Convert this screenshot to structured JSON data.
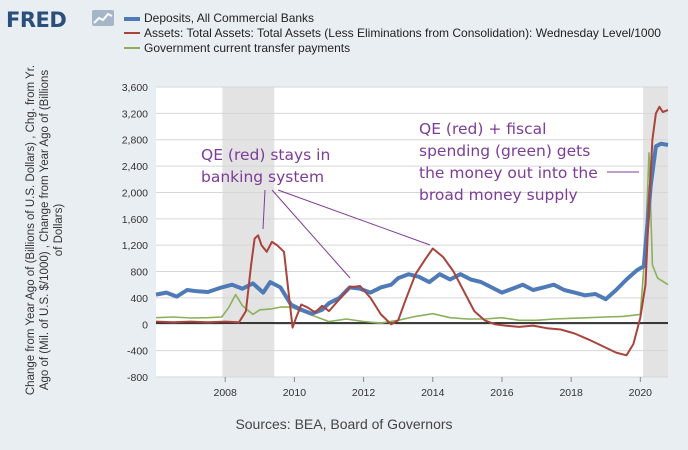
{
  "logo_text": "FRED",
  "source": "Sources: BEA, Board of Governors",
  "ylabel_lines": [
    "Change from Year Ago of (Billions of U.S. Dollars) , Chg. from Yr.",
    "Ago of (Mil. of U.S. $/1000) , Change from Year Ago of (Billions",
    "of Dollars)"
  ],
  "legend": [
    {
      "name": "Deposits, All Commercial Banks",
      "color": "#4f7ab8"
    },
    {
      "name": "Assets: Total Assets: Total Assets (Less Eliminations from Consolidation): Wednesday Level/1000",
      "color": "#a8443b"
    },
    {
      "name": "Government current transfer payments",
      "color": "#8cb05b"
    }
  ],
  "annotations": [
    {
      "lines": [
        "QE (red) stays in",
        "banking system"
      ]
    },
    {
      "lines": [
        "QE (red) + fiscal",
        "spending (green) gets",
        "the money out into the",
        "broad money supply"
      ]
    }
  ],
  "chart_data": {
    "type": "line",
    "xlim": [
      2006.0,
      2020.8
    ],
    "ylim": [
      -800,
      3600
    ],
    "yticks": [
      -800,
      -400,
      0,
      400,
      800,
      1200,
      1600,
      2000,
      2400,
      2800,
      3200,
      3600
    ],
    "ytick_labels": [
      "-800",
      "-400",
      "0",
      "400",
      "800",
      "1,200",
      "1,600",
      "2,000",
      "2,400",
      "2,800",
      "3,200",
      "3,600"
    ],
    "xticks": [
      2008,
      2010,
      2012,
      2014,
      2016,
      2018,
      2020
    ],
    "xtick_labels": [
      "2008",
      "2010",
      "2012",
      "2014",
      "2016",
      "2018",
      "2020"
    ],
    "recessions": [
      [
        2007.92,
        2009.42
      ],
      [
        2020.08,
        2020.8
      ]
    ],
    "series": [
      {
        "name": "Deposits, All Commercial Banks",
        "color": "#4f7ab8",
        "points": [
          [
            2006.0,
            450
          ],
          [
            2006.3,
            480
          ],
          [
            2006.6,
            420
          ],
          [
            2006.9,
            520
          ],
          [
            2007.2,
            500
          ],
          [
            2007.5,
            490
          ],
          [
            2007.9,
            560
          ],
          [
            2008.2,
            600
          ],
          [
            2008.5,
            540
          ],
          [
            2008.8,
            620
          ],
          [
            2009.1,
            480
          ],
          [
            2009.3,
            640
          ],
          [
            2009.6,
            560
          ],
          [
            2009.9,
            300
          ],
          [
            2010.2,
            220
          ],
          [
            2010.5,
            160
          ],
          [
            2010.8,
            220
          ],
          [
            2011.0,
            320
          ],
          [
            2011.3,
            400
          ],
          [
            2011.6,
            560
          ],
          [
            2011.9,
            540
          ],
          [
            2012.2,
            480
          ],
          [
            2012.5,
            560
          ],
          [
            2012.8,
            600
          ],
          [
            2013.0,
            700
          ],
          [
            2013.3,
            760
          ],
          [
            2013.6,
            720
          ],
          [
            2013.9,
            640
          ],
          [
            2014.2,
            760
          ],
          [
            2014.5,
            680
          ],
          [
            2014.8,
            760
          ],
          [
            2015.1,
            680
          ],
          [
            2015.4,
            640
          ],
          [
            2015.7,
            560
          ],
          [
            2016.0,
            480
          ],
          [
            2016.3,
            540
          ],
          [
            2016.6,
            600
          ],
          [
            2016.9,
            520
          ],
          [
            2017.2,
            560
          ],
          [
            2017.5,
            600
          ],
          [
            2017.8,
            520
          ],
          [
            2018.1,
            480
          ],
          [
            2018.4,
            440
          ],
          [
            2018.7,
            460
          ],
          [
            2019.0,
            380
          ],
          [
            2019.3,
            520
          ],
          [
            2019.6,
            680
          ],
          [
            2019.9,
            820
          ],
          [
            2020.1,
            880
          ],
          [
            2020.3,
            2100
          ],
          [
            2020.45,
            2700
          ],
          [
            2020.6,
            2740
          ],
          [
            2020.8,
            2720
          ]
        ]
      },
      {
        "name": "Assets: Total Assets: Total Assets (Less Eliminations from Consolidation): Wednesday Level/1000",
        "color": "#a8443b",
        "points": [
          [
            2006.0,
            40
          ],
          [
            2006.5,
            30
          ],
          [
            2007.0,
            40
          ],
          [
            2007.5,
            30
          ],
          [
            2008.0,
            40
          ],
          [
            2008.4,
            30
          ],
          [
            2008.6,
            200
          ],
          [
            2008.75,
            900
          ],
          [
            2008.85,
            1300
          ],
          [
            2008.95,
            1350
          ],
          [
            2009.05,
            1200
          ],
          [
            2009.2,
            1100
          ],
          [
            2009.35,
            1250
          ],
          [
            2009.5,
            1200
          ],
          [
            2009.7,
            1100
          ],
          [
            2009.85,
            400
          ],
          [
            2009.95,
            -50
          ],
          [
            2010.05,
            100
          ],
          [
            2010.2,
            300
          ],
          [
            2010.4,
            250
          ],
          [
            2010.6,
            180
          ],
          [
            2010.8,
            280
          ],
          [
            2011.0,
            200
          ],
          [
            2011.3,
            380
          ],
          [
            2011.6,
            560
          ],
          [
            2011.9,
            580
          ],
          [
            2012.2,
            400
          ],
          [
            2012.5,
            150
          ],
          [
            2012.8,
            0
          ],
          [
            2013.0,
            60
          ],
          [
            2013.2,
            350
          ],
          [
            2013.5,
            760
          ],
          [
            2013.8,
            1000
          ],
          [
            2014.0,
            1150
          ],
          [
            2014.3,
            1020
          ],
          [
            2014.6,
            800
          ],
          [
            2014.9,
            500
          ],
          [
            2015.2,
            200
          ],
          [
            2015.5,
            60
          ],
          [
            2015.8,
            0
          ],
          [
            2016.1,
            -20
          ],
          [
            2016.5,
            -40
          ],
          [
            2016.9,
            -20
          ],
          [
            2017.3,
            -60
          ],
          [
            2017.7,
            -80
          ],
          [
            2018.1,
            -140
          ],
          [
            2018.5,
            -230
          ],
          [
            2018.9,
            -330
          ],
          [
            2019.3,
            -430
          ],
          [
            2019.6,
            -470
          ],
          [
            2019.8,
            -300
          ],
          [
            2020.0,
            100
          ],
          [
            2020.15,
            600
          ],
          [
            2020.25,
            1800
          ],
          [
            2020.35,
            2800
          ],
          [
            2020.45,
            3200
          ],
          [
            2020.55,
            3300
          ],
          [
            2020.65,
            3220
          ],
          [
            2020.8,
            3250
          ]
        ]
      },
      {
        "name": "Government current transfer payments",
        "color": "#8cb05b",
        "points": [
          [
            2006.0,
            100
          ],
          [
            2006.5,
            110
          ],
          [
            2007.0,
            95
          ],
          [
            2007.5,
            100
          ],
          [
            2007.9,
            110
          ],
          [
            2008.1,
            250
          ],
          [
            2008.3,
            450
          ],
          [
            2008.5,
            280
          ],
          [
            2008.8,
            150
          ],
          [
            2009.0,
            220
          ],
          [
            2009.3,
            230
          ],
          [
            2009.6,
            260
          ],
          [
            2009.9,
            260
          ],
          [
            2010.2,
            200
          ],
          [
            2010.6,
            120
          ],
          [
            2011.0,
            40
          ],
          [
            2011.5,
            80
          ],
          [
            2012.0,
            40
          ],
          [
            2012.5,
            20
          ],
          [
            2013.0,
            60
          ],
          [
            2013.5,
            120
          ],
          [
            2014.0,
            160
          ],
          [
            2014.5,
            100
          ],
          [
            2015.0,
            80
          ],
          [
            2015.5,
            80
          ],
          [
            2016.0,
            100
          ],
          [
            2016.5,
            60
          ],
          [
            2017.0,
            60
          ],
          [
            2017.5,
            80
          ],
          [
            2018.0,
            90
          ],
          [
            2018.5,
            100
          ],
          [
            2019.0,
            110
          ],
          [
            2019.5,
            120
          ],
          [
            2020.0,
            150
          ],
          [
            2020.15,
            1200
          ],
          [
            2020.25,
            2600
          ],
          [
            2020.35,
            900
          ],
          [
            2020.5,
            700
          ],
          [
            2020.8,
            600
          ]
        ]
      }
    ]
  }
}
